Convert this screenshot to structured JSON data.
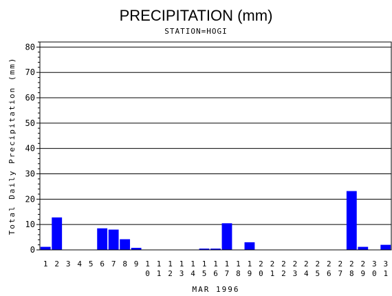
{
  "chart_data": {
    "type": "bar",
    "title": "PRECIPITATION (mm)",
    "subtitle": "STATION=HOGI",
    "xlabel": "MAR 1996",
    "ylabel": "Total Daily Precipitation (mm)",
    "ylim": [
      0,
      82
    ],
    "yticks": [
      0,
      10,
      20,
      30,
      40,
      50,
      60,
      70,
      80
    ],
    "grid": true,
    "bar_color": "#0000ff",
    "categories": [
      "1",
      "2",
      "3",
      "4",
      "5",
      "6",
      "7",
      "8",
      "9",
      "10",
      "11",
      "12",
      "13",
      "14",
      "15",
      "16",
      "17",
      "18",
      "19",
      "20",
      "21",
      "22",
      "23",
      "24",
      "25",
      "26",
      "27",
      "28",
      "29",
      "30",
      "31"
    ],
    "values": [
      1.2,
      12.8,
      0,
      0,
      0,
      8.5,
      8.0,
      4.2,
      0.8,
      0,
      0,
      0,
      0,
      0,
      0.5,
      0.5,
      10.5,
      0,
      3.0,
      0,
      0,
      0,
      0,
      0,
      0,
      0,
      0,
      23.2,
      1.2,
      0,
      2.0
    ]
  }
}
